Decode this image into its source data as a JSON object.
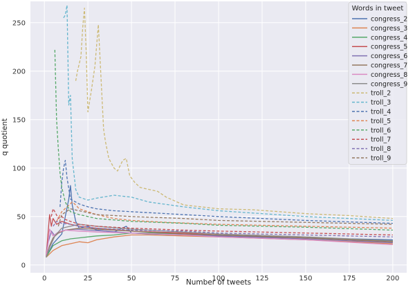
{
  "chart_data": {
    "type": "line",
    "title": "",
    "xlabel": "Number of tweets",
    "ylabel": "q quotient",
    "xlim": [
      -8,
      208
    ],
    "ylim": [
      -8,
      272
    ],
    "xticks": [
      0,
      25,
      50,
      75,
      100,
      125,
      150,
      175,
      200
    ],
    "yticks": [
      0,
      50,
      100,
      150,
      200,
      250
    ],
    "grid": true,
    "legend": {
      "title": "Words in tweet",
      "placement": "top-right"
    },
    "series": [
      {
        "name": "congress_2",
        "color": "#4c72b0",
        "dash": "solid",
        "x": [
          1,
          3,
          5,
          8,
          10,
          12,
          14,
          15,
          16,
          18,
          20,
          25,
          30,
          40,
          47,
          50,
          60,
          80,
          100,
          150,
          200
        ],
        "y": [
          9,
          15,
          22,
          28,
          32,
          50,
          68,
          82,
          62,
          45,
          38,
          40,
          36,
          34,
          40,
          33,
          32,
          31,
          30,
          28,
          26
        ]
      },
      {
        "name": "congress_3",
        "color": "#dd8452",
        "dash": "solid",
        "x": [
          1,
          5,
          10,
          15,
          20,
          25,
          30,
          40,
          50,
          60,
          80,
          100,
          150,
          200
        ],
        "y": [
          8,
          15,
          20,
          22,
          24,
          23,
          26,
          29,
          31,
          31,
          30,
          29,
          26,
          22
        ]
      },
      {
        "name": "congress_4",
        "color": "#55a868",
        "dash": "solid",
        "x": [
          1,
          3,
          5,
          8,
          10,
          15,
          20,
          25,
          30,
          40,
          50,
          60,
          80,
          100,
          150,
          200
        ],
        "y": [
          8,
          14,
          20,
          23,
          25,
          27,
          28,
          29,
          30,
          31,
          33,
          33,
          32,
          31,
          28,
          25
        ]
      },
      {
        "name": "congress_5",
        "color": "#c44e52",
        "dash": "solid",
        "x": [
          1,
          2,
          3,
          4,
          5,
          7,
          10,
          15,
          20,
          30,
          50,
          80,
          100,
          150,
          200
        ],
        "y": [
          9,
          30,
          52,
          40,
          48,
          42,
          45,
          42,
          40,
          38,
          35,
          33,
          31,
          28,
          24
        ]
      },
      {
        "name": "congress_6",
        "color": "#8172b3",
        "dash": "solid",
        "x": [
          1,
          2,
          4,
          6,
          8,
          12,
          18,
          25,
          35,
          50,
          80,
          100,
          150,
          200
        ],
        "y": [
          9,
          22,
          35,
          30,
          33,
          36,
          37,
          36,
          35,
          33,
          31,
          30,
          27,
          23
        ]
      },
      {
        "name": "congress_7",
        "color": "#937860",
        "dash": "solid",
        "x": [
          1,
          3,
          5,
          8,
          12,
          20,
          30,
          50,
          80,
          100,
          150,
          200
        ],
        "y": [
          8,
          20,
          28,
          33,
          36,
          38,
          37,
          35,
          32,
          31,
          28,
          24
        ]
      },
      {
        "name": "congress_8",
        "color": "#da8bc3",
        "dash": "solid",
        "x": [
          1,
          2,
          3,
          5,
          8,
          12,
          20,
          30,
          50,
          80,
          100,
          150,
          200
        ],
        "y": [
          9,
          20,
          37,
          30,
          34,
          36,
          35,
          34,
          33,
          31,
          29,
          26,
          21
        ]
      },
      {
        "name": "congress_9",
        "color": "#8c8c8c",
        "dash": "solid",
        "x": [
          1,
          3,
          6,
          10,
          15,
          20,
          30,
          50,
          80,
          100,
          150,
          200
        ],
        "y": [
          8,
          18,
          30,
          38,
          40,
          42,
          40,
          37,
          34,
          32,
          29,
          25
        ]
      },
      {
        "name": "troll_2",
        "color": "#ccb974",
        "dash": "dashed",
        "x": [
          18,
          19,
          21,
          22,
          23,
          24,
          25,
          27,
          29,
          31,
          33,
          34,
          35,
          37,
          40,
          42,
          45,
          47,
          49,
          52,
          55,
          60,
          65,
          70,
          80,
          100,
          120,
          150,
          175,
          200
        ],
        "y": [
          190,
          200,
          215,
          245,
          265,
          220,
          158,
          180,
          205,
          248,
          175,
          140,
          128,
          110,
          100,
          97,
          108,
          110,
          92,
          85,
          80,
          78,
          76,
          70,
          62,
          58,
          57,
          53,
          51,
          48
        ]
      },
      {
        "name": "troll_3",
        "color": "#64b5cd",
        "dash": "dashed",
        "x": [
          11,
          12,
          13,
          14,
          15,
          16,
          18,
          20,
          25,
          30,
          40,
          50,
          60,
          80,
          100,
          150,
          200
        ],
        "y": [
          255,
          258,
          268,
          165,
          175,
          110,
          78,
          70,
          67,
          69,
          72,
          70,
          65,
          60,
          56,
          50,
          46
        ]
      },
      {
        "name": "troll_4",
        "color": "#4c72b0",
        "dash": "dashed",
        "x": [
          9,
          10,
          11,
          12,
          13,
          15,
          20,
          25,
          30,
          40,
          50,
          60,
          80,
          100,
          150,
          200
        ],
        "y": [
          60,
          85,
          100,
          108,
          90,
          68,
          63,
          60,
          58,
          56,
          55,
          54,
          52,
          50,
          46,
          43
        ]
      },
      {
        "name": "troll_5",
        "color": "#dd8452",
        "dash": "dashed",
        "x": [
          7,
          10,
          13,
          16,
          18,
          20,
          25,
          30,
          40,
          50,
          70,
          100,
          150,
          200
        ],
        "y": [
          45,
          55,
          60,
          65,
          62,
          58,
          55,
          52,
          48,
          46,
          44,
          42,
          40,
          38
        ]
      },
      {
        "name": "troll_6",
        "color": "#55a868",
        "dash": "dashed",
        "x": [
          6,
          7,
          8,
          9,
          10,
          12,
          15,
          20,
          30,
          50,
          80,
          100,
          150,
          200
        ],
        "y": [
          222,
          150,
          120,
          95,
          80,
          65,
          55,
          52,
          48,
          45,
          43,
          41,
          39,
          36
        ]
      },
      {
        "name": "troll_7",
        "color": "#c44e52",
        "dash": "dashed",
        "x": [
          4,
          5,
          6,
          8,
          10,
          12,
          15,
          20,
          30,
          50,
          80,
          100,
          150,
          200
        ],
        "y": [
          50,
          58,
          55,
          48,
          50,
          47,
          45,
          42,
          40,
          38,
          36,
          35,
          33,
          31
        ]
      },
      {
        "name": "troll_8",
        "color": "#8172b3",
        "dash": "dashed",
        "x": [
          5,
          7,
          10,
          15,
          20,
          30,
          50,
          80,
          100,
          150,
          200
        ],
        "y": [
          40,
          45,
          43,
          42,
          40,
          38,
          36,
          35,
          33,
          31,
          29
        ]
      },
      {
        "name": "troll_9",
        "color": "#937860",
        "dash": "dashed",
        "x": [
          8,
          10,
          15,
          20,
          25,
          30,
          50,
          80,
          100,
          150,
          200
        ],
        "y": [
          40,
          52,
          58,
          56,
          54,
          52,
          50,
          48,
          46,
          44,
          42
        ]
      }
    ]
  }
}
